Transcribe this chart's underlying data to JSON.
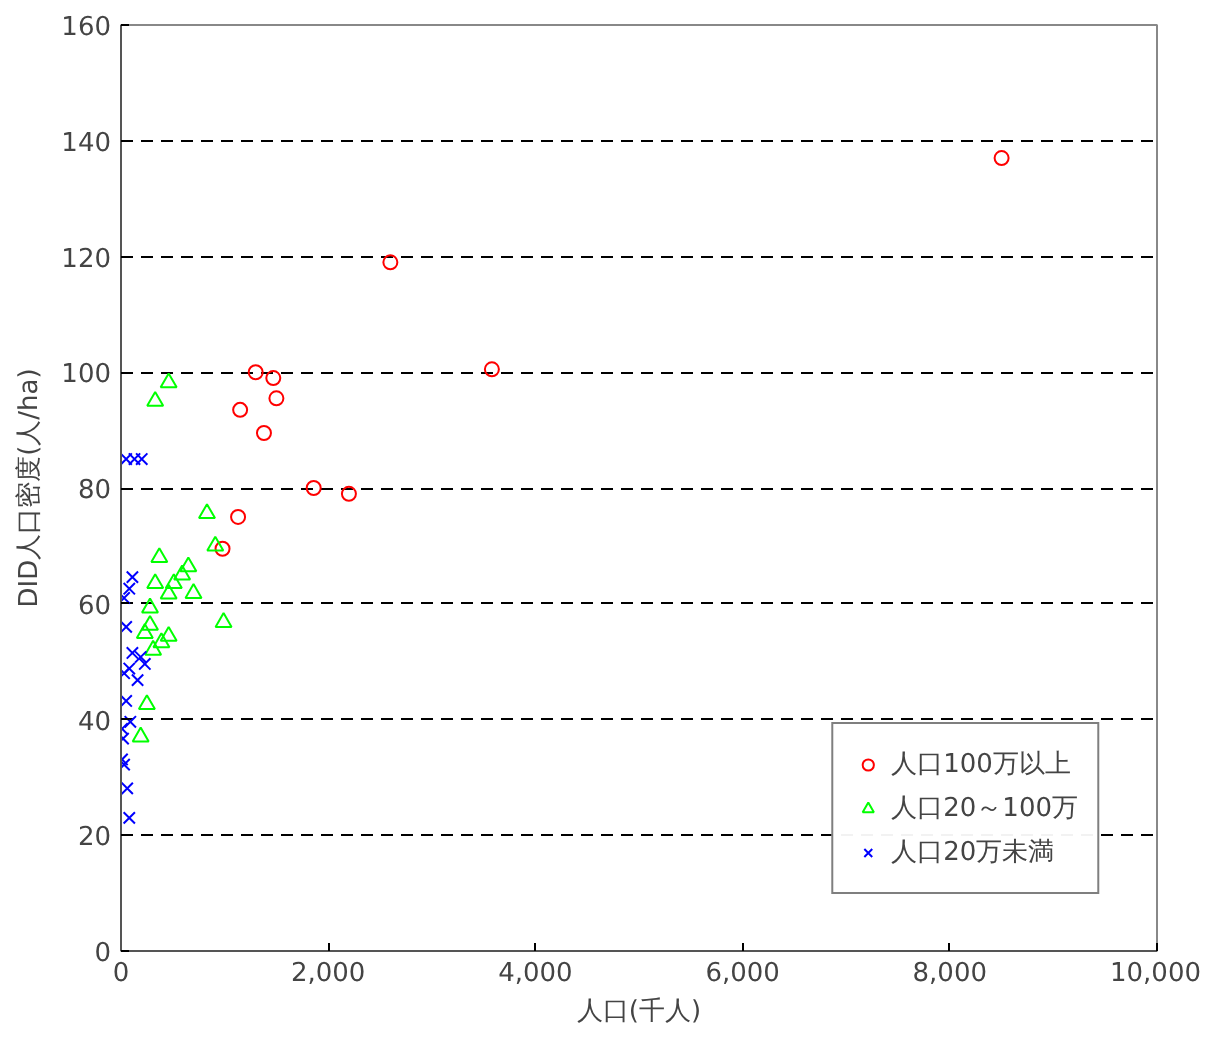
{
  "chart_data": {
    "type": "scatter",
    "xlabel": "人口(千人)",
    "ylabel": "DID人口密度(人/ha)",
    "xlim": [
      0,
      10000
    ],
    "ylim": [
      0,
      160
    ],
    "xticks": [
      0,
      {
        "value": 2000,
        "label": "2,000"
      },
      {
        "value": 4000,
        "label": "4,000"
      },
      {
        "value": 6000,
        "label": "6,000"
      },
      {
        "value": 8000,
        "label": "8,000"
      },
      {
        "value": 10000,
        "label": "10,000"
      }
    ],
    "yticks": [
      0,
      20,
      40,
      60,
      80,
      100,
      120,
      140,
      160
    ],
    "grid": "y",
    "legend": "bottom right",
    "series": [
      {
        "name": "人口100万以上",
        "color": "#ff0000",
        "marker": "circle",
        "x": [
          8500,
          2600,
          3580,
          1300,
          1470,
          1500,
          1150,
          1380,
          1860,
          2200,
          1130,
          980
        ],
        "values": [
          137,
          119,
          100.5,
          100,
          99,
          95.5,
          93.5,
          89.5,
          80,
          79,
          75,
          69.5
        ]
      },
      {
        "name": "人口20～100万",
        "color": "#00ff00",
        "marker": "triangle",
        "x": [
          460,
          330,
          830,
          910,
          370,
          650,
          590,
          510,
          330,
          460,
          700,
          280,
          280,
          990,
          230,
          460,
          390,
          310,
          250,
          190
        ],
        "values": [
          98.2,
          95,
          75.6,
          70,
          68,
          66.4,
          65,
          63.5,
          63.5,
          61.7,
          61.8,
          59.3,
          56.3,
          56.8,
          54.9,
          54.4,
          53.3,
          52,
          42.6,
          37
        ]
      },
      {
        "name": "人口20万未満",
        "color": "#0000ff",
        "marker": "cross",
        "x": [
          50,
          130,
          200,
          110,
          80,
          30,
          50,
          110,
          190,
          230,
          80,
          160,
          30,
          50,
          90,
          10,
          20,
          10,
          30,
          60,
          80
        ],
        "values": [
          85,
          85,
          85,
          64.6,
          62.6,
          61,
          56,
          51.5,
          50.8,
          49.6,
          48.8,
          46.8,
          48,
          43.2,
          39.6,
          38.4,
          36.7,
          33.1,
          32.2,
          28.1,
          23
        ]
      }
    ]
  }
}
